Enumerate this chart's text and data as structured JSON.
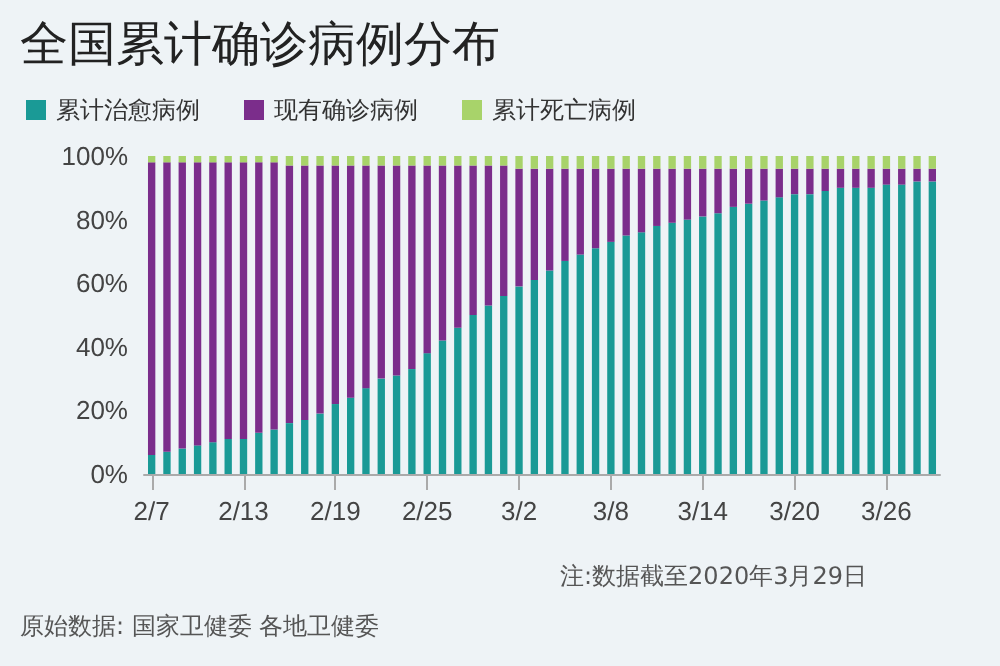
{
  "chart_data": {
    "type": "bar",
    "title": "全国累计确诊病例分布",
    "stacked": true,
    "legend": "top left",
    "grid": false,
    "categories": [
      "2/7",
      null,
      null,
      null,
      null,
      null,
      "2/13",
      null,
      null,
      null,
      null,
      null,
      "2/19",
      null,
      null,
      null,
      null,
      null,
      "2/25",
      null,
      null,
      null,
      null,
      null,
      "3/2",
      null,
      null,
      null,
      null,
      null,
      "3/8",
      null,
      null,
      null,
      null,
      null,
      "3/14",
      null,
      null,
      null,
      null,
      null,
      "3/20",
      null,
      null,
      null,
      null,
      null,
      "3/26",
      null,
      null,
      null
    ],
    "series": [
      {
        "name": "累计治愈病例",
        "color": "#1a9a96",
        "values": [
          6,
          7,
          8,
          9,
          10,
          11,
          11,
          13,
          14,
          16,
          17,
          19,
          22,
          24,
          27,
          30,
          31,
          33,
          38,
          42,
          46,
          50,
          53,
          56,
          59,
          61,
          64,
          67,
          69,
          71,
          73,
          75,
          76,
          78,
          79,
          80,
          81,
          82,
          84,
          85,
          86,
          87,
          88,
          88,
          89,
          90,
          90,
          90,
          91,
          91,
          92,
          92
        ]
      },
      {
        "name": "现有确诊病例",
        "color": "#7b2d8b",
        "values": [
          92,
          91,
          90,
          89,
          88,
          87,
          87,
          85,
          84,
          81,
          80,
          78,
          75,
          73,
          70,
          67,
          66,
          64,
          59,
          55,
          51,
          47,
          44,
          41,
          37,
          35,
          32,
          29,
          27,
          25,
          23,
          21,
          20,
          18,
          17,
          16,
          15,
          14,
          12,
          11,
          10,
          9,
          8,
          8,
          7,
          6,
          6,
          6,
          5,
          5,
          4,
          4
        ]
      },
      {
        "name": "累计死亡病例",
        "color": "#a8d36a",
        "values": [
          2,
          2,
          2,
          2,
          2,
          2,
          2,
          2,
          2,
          3,
          3,
          3,
          3,
          3,
          3,
          3,
          3,
          3,
          3,
          3,
          3,
          3,
          3,
          3,
          4,
          4,
          4,
          4,
          4,
          4,
          4,
          4,
          4,
          4,
          4,
          4,
          4,
          4,
          4,
          4,
          4,
          4,
          4,
          4,
          4,
          4,
          4,
          4,
          4,
          4,
          4,
          4
        ]
      }
    ],
    "ylim": [
      0,
      100
    ],
    "yticks": [
      {
        "value": 0,
        "label": "0%"
      },
      {
        "value": 20,
        "label": "20%"
      },
      {
        "value": 40,
        "label": "40%"
      },
      {
        "value": 60,
        "label": "60%"
      },
      {
        "value": 80,
        "label": "80%"
      },
      {
        "value": 100,
        "label": "100%"
      }
    ],
    "annotations": [
      "注:数据截至2020年3月29日",
      "原始数据: 国家卫健委 各地卫健委"
    ]
  }
}
